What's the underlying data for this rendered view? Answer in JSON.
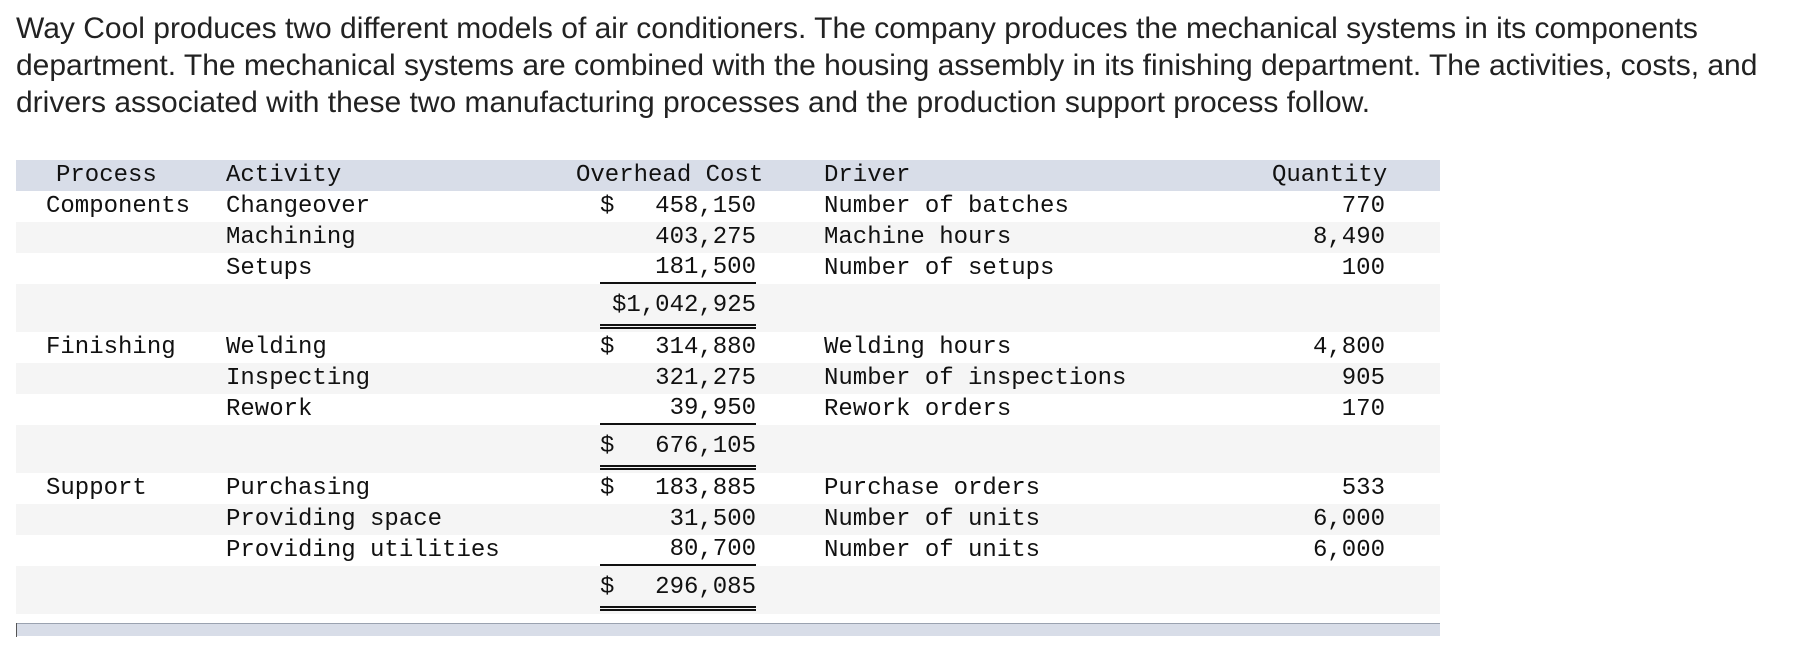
{
  "intro": "Way Cool produces two different models of air conditioners. The company produces the mechanical systems in its components department. The mechanical systems are combined with the housing assembly in its finishing department. The activities, costs, and drivers associated with these two manufacturing processes and the production support process follow.",
  "table": {
    "headers": {
      "process": "Process",
      "activity": "Activity",
      "overhead_cost": "Overhead Cost",
      "driver": "Driver",
      "quantity": "Quantity"
    },
    "groups": [
      {
        "process": "Components",
        "rows": [
          {
            "activity": "Changeover",
            "dollar": "$",
            "cost": "458,150",
            "driver": "Number of batches",
            "quantity": "770"
          },
          {
            "activity": "Machining",
            "dollar": "",
            "cost": "403,275",
            "driver": "Machine hours",
            "quantity": "8,490"
          },
          {
            "activity": "Setups",
            "dollar": "",
            "cost": "181,500",
            "driver": "Number of setups",
            "quantity": "100"
          }
        ],
        "total": "$1,042,925"
      },
      {
        "process": "Finishing",
        "rows": [
          {
            "activity": "Welding",
            "dollar": "$",
            "cost": "314,880",
            "driver": "Welding hours",
            "quantity": "4,800"
          },
          {
            "activity": "Inspecting",
            "dollar": "",
            "cost": "321,275",
            "driver": "Number of inspections",
            "quantity": "905"
          },
          {
            "activity": "Rework",
            "dollar": "",
            "cost": "39,950",
            "driver": "Rework orders",
            "quantity": "170"
          }
        ],
        "total_dollar": "$",
        "total": "676,105"
      },
      {
        "process": "Support",
        "rows": [
          {
            "activity": "Purchasing",
            "dollar": "$",
            "cost": "183,885",
            "driver": "Purchase orders",
            "quantity": "533"
          },
          {
            "activity": "Providing space",
            "dollar": "",
            "cost": "31,500",
            "driver": "Number of units",
            "quantity": "6,000"
          },
          {
            "activity": "Providing utilities",
            "dollar": "",
            "cost": "80,700",
            "driver": "Number of units",
            "quantity": "6,000"
          }
        ],
        "total_dollar": "$",
        "total": "296,085"
      }
    ]
  }
}
